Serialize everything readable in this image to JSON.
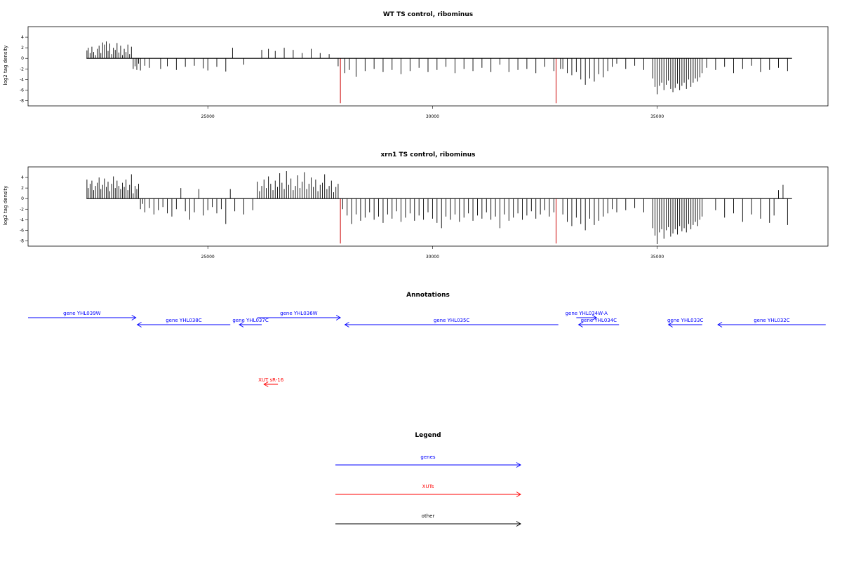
{
  "chart_data": [
    {
      "type": "bar",
      "title": "WT TS control, ribominus",
      "ylabel": "log2 tag density",
      "xlim": [
        21000,
        38800
      ],
      "ylim": [
        -9,
        6
      ],
      "xticks": [
        25000,
        30000,
        35000
      ],
      "yticks": [
        4,
        2,
        0,
        -2,
        -4,
        -6,
        -8
      ],
      "baseline": [
        22300,
        38000
      ],
      "series": [
        {
          "color": "#000000",
          "x": [
            22310,
            22340,
            22380,
            22420,
            22460,
            22500,
            22540,
            22580,
            22620,
            22660,
            22700,
            22740,
            22780,
            22820,
            22860,
            22900,
            22940,
            22980,
            23020,
            23060,
            23100,
            23140,
            23180,
            23220,
            23260,
            23300,
            23340,
            23380,
            23420,
            23460,
            23500,
            23600,
            23700,
            23950,
            24100,
            24300,
            24500,
            24700,
            24900,
            25000,
            25200,
            25400,
            25550,
            25800,
            26200,
            26350,
            26500,
            26700,
            26900,
            27100,
            27300,
            27500,
            27700,
            27900,
            28050,
            28150,
            28300,
            28500,
            28700,
            28900,
            29100,
            29300,
            29500,
            29700,
            29900,
            30100,
            30300,
            30500,
            30700,
            30900,
            31100,
            31300,
            31500,
            31700,
            31900,
            32100,
            32300,
            32500,
            32700,
            32850
          ],
          "values": [
            1.5,
            2.0,
            1.0,
            2.2,
            1.2,
            0.6,
            1.8,
            2.4,
            1.0,
            3.0,
            2.6,
            3.2,
            1.4,
            2.8,
            0.8,
            2.0,
            1.6,
            2.9,
            1.1,
            2.4,
            0.6,
            1.8,
            1.2,
            2.6,
            0.8,
            2.2,
            -2.0,
            -1.5,
            -2.2,
            -1.0,
            -2.3,
            -1.4,
            -1.8,
            -2.0,
            -1.5,
            -2.2,
            -1.6,
            -1.4,
            -1.9,
            -2.3,
            -1.6,
            -2.5,
            2.0,
            -1.2,
            1.6,
            1.8,
            1.4,
            2.0,
            1.6,
            1.0,
            1.8,
            1.0,
            0.8,
            -1.5,
            -2.8,
            -2.2,
            -3.5,
            -2.4,
            -2.0,
            -2.6,
            -2.2,
            -3.0,
            -2.4,
            -1.8,
            -2.6,
            -2.2,
            -1.6,
            -2.8,
            -2.0,
            -2.4,
            -1.8,
            -2.6,
            -1.2,
            -2.6,
            -2.2,
            -2.0,
            -2.8,
            -1.6,
            -2.4,
            -2.0
          ]
        },
        {
          "color": "#000000",
          "x": [
            32900,
            33000,
            33100,
            33200,
            33300,
            33400,
            33500,
            33600,
            33700,
            33800,
            33900,
            34000,
            34100,
            34300,
            34500,
            34700,
            34900,
            34950,
            35000,
            35050,
            35100,
            35150,
            35200,
            35250,
            35300,
            35350,
            35400,
            35450,
            35500,
            35550,
            35600,
            35650,
            35700,
            35750,
            35800,
            35850,
            35900,
            35950,
            36000,
            36100,
            36300,
            36500,
            36700,
            36900,
            37100,
            37300,
            37500,
            37700,
            37900
          ],
          "values": [
            -2.0,
            -2.8,
            -3.2,
            -2.6,
            -4.0,
            -5.0,
            -3.8,
            -4.4,
            -3.0,
            -3.6,
            -2.4,
            -1.6,
            -1.0,
            -2.0,
            -1.4,
            -2.2,
            -3.8,
            -5.4,
            -6.8,
            -5.2,
            -4.6,
            -6.0,
            -5.0,
            -4.2,
            -5.8,
            -6.4,
            -5.6,
            -4.8,
            -6.0,
            -5.2,
            -4.6,
            -5.8,
            -4.0,
            -5.4,
            -4.6,
            -3.8,
            -4.4,
            -3.6,
            -2.8,
            -1.8,
            -2.2,
            -1.6,
            -2.8,
            -2.0,
            -1.4,
            -2.6,
            -2.2,
            -1.8,
            -2.4
          ]
        },
        {
          "color": "#cc0000",
          "x": [
            27950,
            32750
          ],
          "values": [
            -8.5,
            -8.5
          ]
        }
      ]
    },
    {
      "type": "bar",
      "title": "xrn1 TS control, ribominus",
      "ylabel": "log2 tag density",
      "xlim": [
        21000,
        38800
      ],
      "ylim": [
        -9,
        6
      ],
      "xticks": [
        25000,
        30000,
        35000
      ],
      "yticks": [
        4,
        2,
        0,
        -2,
        -4,
        -6,
        -8
      ],
      "baseline": [
        22300,
        38000
      ],
      "series": [
        {
          "color": "#000000",
          "x": [
            22310,
            22340,
            22380,
            22420,
            22460,
            22500,
            22540,
            22580,
            22620,
            22660,
            22700,
            22740,
            22780,
            22820,
            22860,
            22900,
            22940,
            22980,
            23020,
            23060,
            23100,
            23140,
            23180,
            23220,
            23260,
            23300,
            23340,
            23380,
            23420,
            23460,
            23500,
            23550,
            23600,
            23700,
            23800,
            23900,
            24000,
            24100,
            24200,
            24300,
            24400,
            24500,
            24600,
            24700,
            24800,
            24900,
            25000,
            25100,
            25200,
            25300,
            25400,
            25500,
            25600,
            25800,
            26000,
            26100,
            26150,
            26200,
            26250,
            26300,
            26350,
            26400,
            26450,
            26500,
            26550,
            26600,
            26650,
            26700,
            26750,
            26800,
            26850,
            26900,
            26950,
            27000,
            27050,
            27100,
            27150,
            27200,
            27250,
            27300,
            27350,
            27400,
            27450,
            27500,
            27550,
            27600,
            27650,
            27700,
            27750,
            27800,
            27850,
            27900
          ],
          "values": [
            3.6,
            2.0,
            2.8,
            3.4,
            1.6,
            2.4,
            3.0,
            4.0,
            1.8,
            2.6,
            3.8,
            2.2,
            3.2,
            1.4,
            2.8,
            4.2,
            2.0,
            3.4,
            2.4,
            1.8,
            3.0,
            2.2,
            3.6,
            1.6,
            2.6,
            4.6,
            1.0,
            2.4,
            1.8,
            2.8,
            -2.0,
            -1.0,
            -2.6,
            -1.8,
            -3.0,
            -2.2,
            -1.6,
            -2.8,
            -3.4,
            -2.0,
            2.0,
            -2.4,
            -4.0,
            -2.6,
            1.8,
            -3.2,
            -2.2,
            -1.6,
            -2.8,
            -2.0,
            -4.8,
            1.8,
            -2.4,
            -3.0,
            -2.2,
            3.2,
            1.4,
            2.4,
            3.6,
            2.0,
            4.2,
            2.8,
            1.6,
            3.4,
            2.2,
            4.8,
            3.0,
            1.8,
            5.2,
            2.6,
            3.8,
            1.6,
            2.4,
            4.4,
            2.0,
            3.2,
            5.0,
            1.8,
            2.8,
            4.0,
            2.2,
            3.6,
            1.4,
            2.6,
            3.0,
            4.6,
            1.8,
            2.4,
            3.4,
            1.2,
            2.2,
            2.8
          ]
        },
        {
          "color": "#000000",
          "x": [
            28000,
            28100,
            28200,
            28300,
            28400,
            28500,
            28600,
            28700,
            28800,
            28900,
            29000,
            29100,
            29200,
            29300,
            29400,
            29500,
            29600,
            29700,
            29800,
            29900,
            30000,
            30100,
            30200,
            30300,
            30400,
            30500,
            30600,
            30700,
            30800,
            30900,
            31000,
            31100,
            31200,
            31300,
            31400,
            31500,
            31600,
            31700,
            31800,
            31900,
            32000,
            32100,
            32200,
            32300,
            32400,
            32500,
            32600,
            32700
          ],
          "values": [
            -2.0,
            -3.2,
            -4.8,
            -3.0,
            -4.2,
            -3.6,
            -2.6,
            -4.0,
            -3.4,
            -4.6,
            -3.0,
            -3.8,
            -2.4,
            -4.4,
            -3.6,
            -2.8,
            -4.2,
            -3.2,
            -4.0,
            -2.6,
            -3.8,
            -4.6,
            -5.6,
            -3.4,
            -4.0,
            -3.0,
            -4.4,
            -3.6,
            -2.8,
            -4.2,
            -3.2,
            -3.8,
            -2.6,
            -4.0,
            -3.4,
            -5.6,
            -3.0,
            -4.2,
            -3.6,
            -2.8,
            -4.0,
            -3.2,
            -2.4,
            -3.8,
            -3.0,
            -2.2,
            -3.4,
            -2.6
          ]
        },
        {
          "color": "#000000",
          "x": [
            32900,
            33000,
            33100,
            33200,
            33300,
            33400,
            33500,
            33600,
            33700,
            33800,
            33900,
            34000,
            34100,
            34300,
            34500,
            34700,
            34900,
            34950,
            35000,
            35050,
            35100,
            35150,
            35200,
            35250,
            35300,
            35350,
            35400,
            35450,
            35500,
            35550,
            35600,
            35650,
            35700,
            35750,
            35800,
            35850,
            35900,
            35950,
            36000,
            36300,
            36500,
            36700,
            36900,
            37100,
            37300,
            37500,
            37600,
            37700,
            37800,
            37900
          ],
          "values": [
            -3.0,
            -4.4,
            -5.2,
            -3.6,
            -4.8,
            -6.0,
            -3.8,
            -5.0,
            -4.2,
            -3.4,
            -2.8,
            -2.0,
            -2.6,
            -2.2,
            -1.8,
            -2.6,
            -5.6,
            -7.0,
            -8.6,
            -6.4,
            -5.8,
            -7.6,
            -6.0,
            -5.4,
            -7.2,
            -6.6,
            -5.8,
            -6.8,
            -5.2,
            -6.2,
            -5.6,
            -6.4,
            -4.8,
            -5.8,
            -5.0,
            -4.4,
            -5.2,
            -4.0,
            -3.4,
            -2.2,
            -3.6,
            -2.8,
            -4.4,
            -3.0,
            -3.8,
            -4.6,
            -3.2,
            1.6,
            2.6,
            -5.0
          ]
        },
        {
          "color": "#cc0000",
          "x": [
            27950,
            32750
          ],
          "values": [
            -8.5,
            -8.5
          ]
        }
      ]
    }
  ],
  "annotations": {
    "title": "Annotations",
    "items": [
      {
        "label": "gene YHL039W",
        "start": 21000,
        "end": 23400,
        "dir": "right",
        "color": "#0000ff",
        "row": 0
      },
      {
        "label": "gene YHL038C",
        "start": 23430,
        "end": 25500,
        "dir": "left",
        "color": "#0000ff",
        "row": 1
      },
      {
        "label": "gene YHL037C",
        "start": 25700,
        "end": 26200,
        "dir": "left",
        "color": "#0000ff",
        "row": 1
      },
      {
        "label": "gene YHL036W",
        "start": 26100,
        "end": 27950,
        "dir": "right",
        "color": "#0000ff",
        "row": 0
      },
      {
        "label": "gene YHL035C",
        "start": 28050,
        "end": 32800,
        "dir": "left",
        "color": "#0000ff",
        "row": 1
      },
      {
        "label": "gene YHL034W-A",
        "start": 33200,
        "end": 33650,
        "dir": "right",
        "color": "#0000ff",
        "row": 0
      },
      {
        "label": "gene YHL034C",
        "start": 33250,
        "end": 34150,
        "dir": "left",
        "color": "#0000ff",
        "row": 1
      },
      {
        "label": "gene YHL033C",
        "start": 35250,
        "end": 36000,
        "dir": "left",
        "color": "#0000ff",
        "row": 1
      },
      {
        "label": "gene YHL032C",
        "start": 36350,
        "end": 38750,
        "dir": "left",
        "color": "#0000ff",
        "row": 1
      },
      {
        "label": "XUT sR-16",
        "start": 26250,
        "end": 26560,
        "dir": "left",
        "color": "#ff0000",
        "row": 2
      }
    ]
  },
  "legend": {
    "title": "Legend",
    "items": [
      {
        "label": "genes",
        "color": "#0000ff"
      },
      {
        "label": "XUTs",
        "color": "#ff0000"
      },
      {
        "label": "other",
        "color": "#000000"
      }
    ]
  }
}
